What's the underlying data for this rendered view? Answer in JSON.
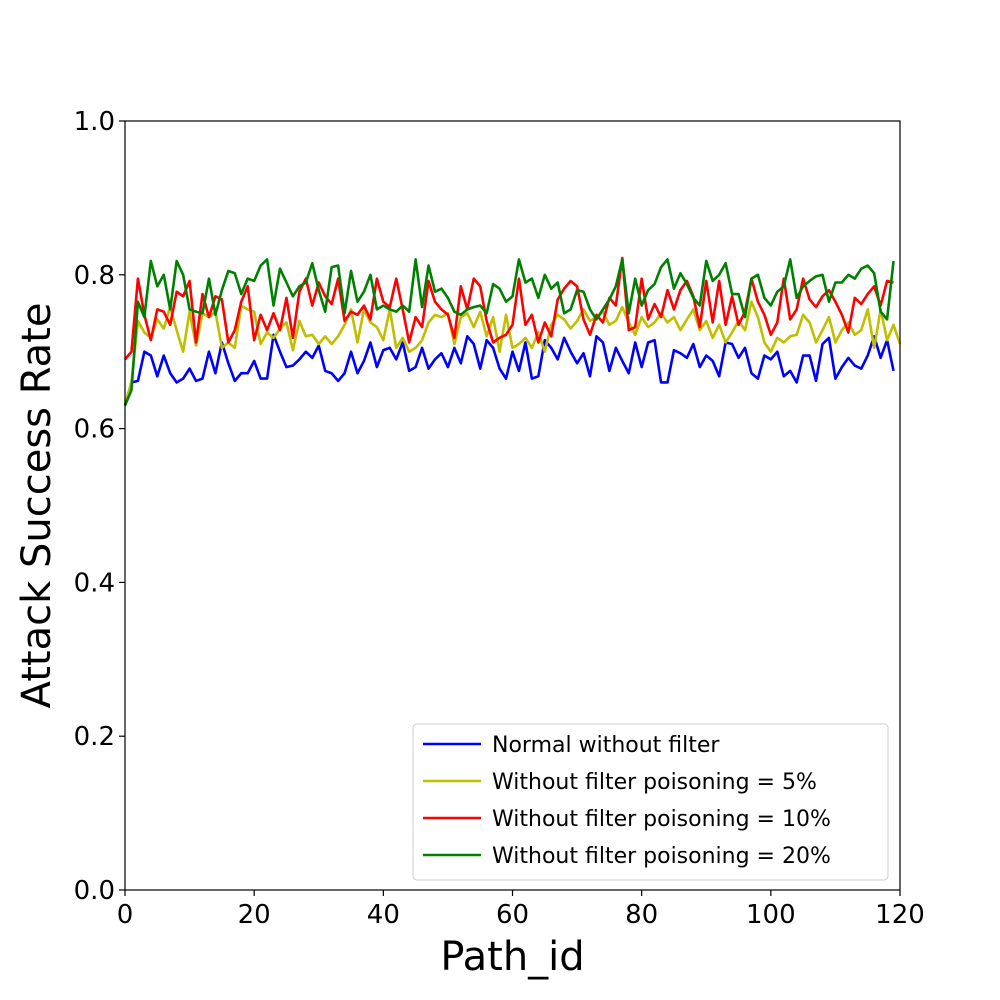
{
  "chart_data": {
    "type": "line",
    "title": "",
    "xlabel": "Path_id",
    "ylabel": "Attack Success Rate",
    "xlim": [
      0,
      120
    ],
    "ylim": [
      0.0,
      1.0
    ],
    "xticks": [
      "0",
      "20",
      "40",
      "60",
      "80",
      "100",
      "120"
    ],
    "yticks": [
      "0.0",
      "0.2",
      "0.4",
      "0.6",
      "0.8",
      "1.0"
    ],
    "grid": false,
    "legend_position": "lower-right",
    "series": [
      {
        "name": "Normal without filter",
        "color": "#0000ff",
        "values": [
          0.63,
          0.66,
          0.662,
          0.7,
          0.695,
          0.668,
          0.695,
          0.672,
          0.66,
          0.665,
          0.678,
          0.662,
          0.665,
          0.7,
          0.672,
          0.712,
          0.685,
          0.662,
          0.672,
          0.672,
          0.688,
          0.665,
          0.665,
          0.722,
          0.7,
          0.68,
          0.682,
          0.69,
          0.7,
          0.692,
          0.708,
          0.675,
          0.672,
          0.662,
          0.672,
          0.7,
          0.672,
          0.688,
          0.712,
          0.68,
          0.702,
          0.705,
          0.69,
          0.712,
          0.675,
          0.68,
          0.705,
          0.678,
          0.69,
          0.698,
          0.68,
          0.705,
          0.685,
          0.72,
          0.71,
          0.678,
          0.715,
          0.705,
          0.678,
          0.665,
          0.7,
          0.675,
          0.712,
          0.665,
          0.668,
          0.715,
          0.705,
          0.69,
          0.718,
          0.7,
          0.685,
          0.698,
          0.668,
          0.72,
          0.712,
          0.675,
          0.705,
          0.688,
          0.672,
          0.712,
          0.68,
          0.712,
          0.715,
          0.66,
          0.66,
          0.702,
          0.698,
          0.692,
          0.71,
          0.68,
          0.695,
          0.688,
          0.668,
          0.712,
          0.71,
          0.692,
          0.705,
          0.672,
          0.665,
          0.695,
          0.69,
          0.7,
          0.668,
          0.675,
          0.66,
          0.695,
          0.695,
          0.662,
          0.71,
          0.718,
          0.665,
          0.68,
          0.692,
          0.682,
          0.678,
          0.695,
          0.72,
          0.692,
          0.715,
          0.675
        ]
      },
      {
        "name": "Without filter poisoning = 5%",
        "color": "#bfbf00",
        "values": [
          0.632,
          0.66,
          0.74,
          0.725,
          0.718,
          0.742,
          0.73,
          0.758,
          0.728,
          0.7,
          0.752,
          0.708,
          0.75,
          0.745,
          0.752,
          0.705,
          0.712,
          0.705,
          0.76,
          0.755,
          0.752,
          0.71,
          0.725,
          0.718,
          0.73,
          0.738,
          0.702,
          0.74,
          0.72,
          0.722,
          0.71,
          0.72,
          0.71,
          0.72,
          0.735,
          0.755,
          0.712,
          0.755,
          0.738,
          0.732,
          0.715,
          0.755,
          0.705,
          0.718,
          0.7,
          0.705,
          0.715,
          0.738,
          0.748,
          0.745,
          0.75,
          0.71,
          0.745,
          0.75,
          0.732,
          0.752,
          0.72,
          0.745,
          0.7,
          0.748,
          0.705,
          0.71,
          0.718,
          0.705,
          0.725,
          0.7,
          0.735,
          0.748,
          0.742,
          0.73,
          0.74,
          0.755,
          0.74,
          0.745,
          0.752,
          0.735,
          0.74,
          0.758,
          0.738,
          0.722,
          0.745,
          0.732,
          0.738,
          0.75,
          0.738,
          0.745,
          0.728,
          0.742,
          0.755,
          0.728,
          0.74,
          0.718,
          0.735,
          0.712,
          0.725,
          0.74,
          0.728,
          0.765,
          0.745,
          0.712,
          0.7,
          0.718,
          0.712,
          0.72,
          0.722,
          0.748,
          0.738,
          0.712,
          0.728,
          0.745,
          0.712,
          0.728,
          0.738,
          0.722,
          0.728,
          0.755,
          0.705,
          0.755,
          0.715,
          0.735,
          0.71
        ]
      },
      {
        "name": "Without filter poisoning = 10%",
        "color": "#ff0000",
        "values": [
          0.69,
          0.7,
          0.795,
          0.748,
          0.715,
          0.755,
          0.752,
          0.735,
          0.778,
          0.772,
          0.792,
          0.712,
          0.775,
          0.745,
          0.772,
          0.768,
          0.712,
          0.728,
          0.765,
          0.785,
          0.715,
          0.748,
          0.728,
          0.75,
          0.728,
          0.77,
          0.718,
          0.778,
          0.795,
          0.76,
          0.79,
          0.772,
          0.762,
          0.795,
          0.74,
          0.752,
          0.748,
          0.76,
          0.742,
          0.795,
          0.765,
          0.758,
          0.795,
          0.755,
          0.712,
          0.745,
          0.732,
          0.792,
          0.765,
          0.755,
          0.748,
          0.718,
          0.785,
          0.755,
          0.795,
          0.785,
          0.74,
          0.712,
          0.718,
          0.722,
          0.735,
          0.795,
          0.735,
          0.748,
          0.712,
          0.738,
          0.72,
          0.768,
          0.782,
          0.792,
          0.785,
          0.742,
          0.722,
          0.748,
          0.738,
          0.77,
          0.76,
          0.822,
          0.728,
          0.732,
          0.795,
          0.742,
          0.762,
          0.745,
          0.78,
          0.755,
          0.78,
          0.792,
          0.772,
          0.732,
          0.792,
          0.738,
          0.792,
          0.735,
          0.772,
          0.735,
          0.752,
          0.795,
          0.765,
          0.748,
          0.722,
          0.738,
          0.795,
          0.742,
          0.755,
          0.795,
          0.768,
          0.758,
          0.772,
          0.78,
          0.765,
          0.748,
          0.725,
          0.77,
          0.762,
          0.775,
          0.785,
          0.76,
          0.792,
          0.79
        ]
      },
      {
        "name": "Without filter poisoning = 20%",
        "color": "#008000",
        "values": [
          0.63,
          0.65,
          0.765,
          0.745,
          0.818,
          0.785,
          0.8,
          0.755,
          0.818,
          0.8,
          0.755,
          0.752,
          0.75,
          0.795,
          0.748,
          0.78,
          0.805,
          0.802,
          0.775,
          0.795,
          0.792,
          0.812,
          0.82,
          0.76,
          0.808,
          0.79,
          0.772,
          0.785,
          0.79,
          0.815,
          0.78,
          0.752,
          0.81,
          0.812,
          0.75,
          0.805,
          0.765,
          0.778,
          0.8,
          0.755,
          0.76,
          0.755,
          0.752,
          0.76,
          0.752,
          0.82,
          0.758,
          0.812,
          0.778,
          0.782,
          0.77,
          0.752,
          0.748,
          0.755,
          0.758,
          0.76,
          0.75,
          0.788,
          0.782,
          0.765,
          0.772,
          0.82,
          0.79,
          0.795,
          0.77,
          0.8,
          0.782,
          0.79,
          0.75,
          0.755,
          0.78,
          0.778,
          0.755,
          0.742,
          0.755,
          0.768,
          0.785,
          0.82,
          0.75,
          0.795,
          0.76,
          0.78,
          0.788,
          0.81,
          0.82,
          0.782,
          0.802,
          0.788,
          0.77,
          0.76,
          0.818,
          0.792,
          0.8,
          0.815,
          0.775,
          0.775,
          0.745,
          0.795,
          0.8,
          0.77,
          0.76,
          0.778,
          0.785,
          0.82,
          0.77,
          0.785,
          0.792,
          0.798,
          0.8,
          0.765,
          0.79,
          0.79,
          0.8,
          0.795,
          0.808,
          0.812,
          0.802,
          0.752,
          0.742,
          0.818
        ]
      }
    ]
  }
}
